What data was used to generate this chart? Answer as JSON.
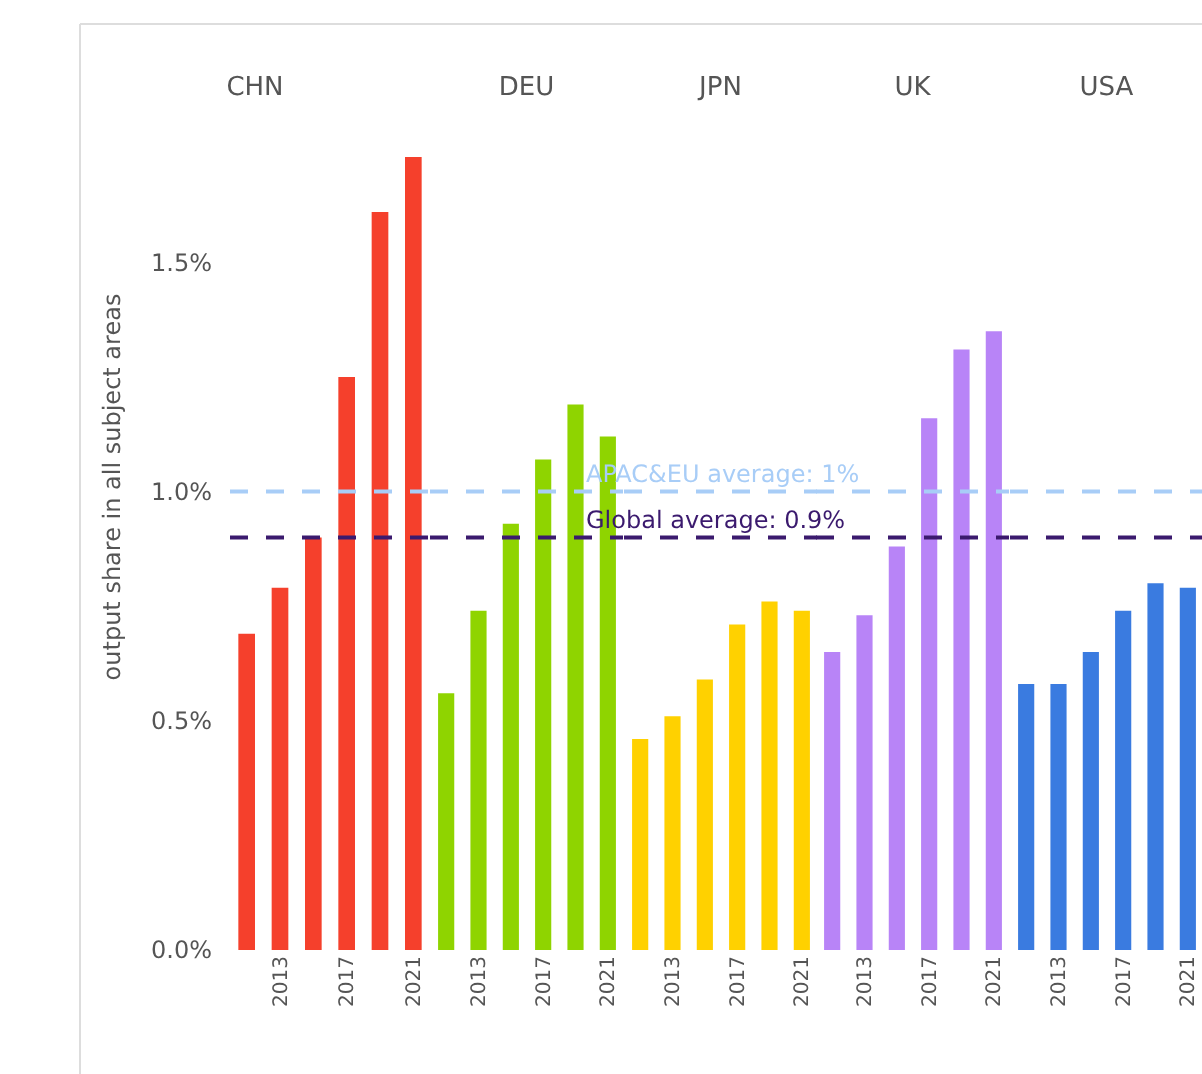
{
  "chart_data": [
    {
      "type": "bar",
      "title": "CHN",
      "ylabel": "output share in all subject areas",
      "categories": [
        null,
        "2013",
        null,
        "2017",
        null,
        "2021"
      ],
      "values": [
        0.69,
        0.79,
        0.9,
        1.25,
        1.61,
        1.73
      ],
      "color": "#f5402c",
      "ylim": [
        0,
        2.02
      ],
      "yticks": [
        {
          "value": 0,
          "label": "0.0%"
        },
        {
          "value": 0.5,
          "label": "0.5%"
        },
        {
          "value": 1,
          "label": "1.0%"
        },
        {
          "value": 1.5,
          "label": "1.5%"
        }
      ],
      "ref_lines": [
        {
          "axis": "y",
          "value": 1,
          "color": "#a8cdf7",
          "line_style": "dashed"
        },
        {
          "axis": "y",
          "value": 0.9,
          "color": "#3b1a6e",
          "line_style": "dashed"
        }
      ]
    },
    {
      "type": "bar",
      "title": "DEU",
      "categories": [
        null,
        "2013",
        null,
        "2017",
        null,
        "2021"
      ],
      "values": [
        0.56,
        0.74,
        0.93,
        1.07,
        1.19,
        1.12
      ],
      "color": "#8fd400",
      "ylim": [
        0,
        2.02
      ],
      "tick_labels": "x",
      "ref_lines": [
        {
          "axis": "y",
          "value": 1,
          "label": "APAC&EU average: 1%",
          "color": "#a8cdf7",
          "line_style": "dashed"
        },
        {
          "axis": "y",
          "value": 0.9,
          "label": "Global average: 0.9%",
          "color": "#3b1a6e",
          "line_style": "dashed"
        }
      ]
    },
    {
      "type": "bar",
      "title": "JPN",
      "categories": [
        null,
        "2013",
        null,
        "2017",
        null,
        "2021"
      ],
      "values": [
        0.46,
        0.51,
        0.59,
        0.71,
        0.76,
        0.74
      ],
      "color": "#ffd100",
      "ylim": [
        0,
        2.02
      ],
      "tick_labels": "x",
      "ref_lines": [
        {
          "axis": "y",
          "value": 1,
          "color": "#a8cdf7",
          "line_style": "dashed"
        },
        {
          "axis": "y",
          "value": 0.9,
          "color": "#3b1a6e",
          "line_style": "dashed"
        }
      ]
    },
    {
      "type": "bar",
      "title": "UK",
      "categories": [
        null,
        "2013",
        null,
        "2017",
        null,
        "2021"
      ],
      "values": [
        0.65,
        0.73,
        0.88,
        1.16,
        1.31,
        1.35
      ],
      "color": "#b884f7",
      "ylim": [
        0,
        2.02
      ],
      "tick_labels": "x",
      "ref_lines": [
        {
          "axis": "y",
          "value": 1,
          "color": "#a8cdf7",
          "line_style": "dashed"
        },
        {
          "axis": "y",
          "value": 0.9,
          "color": "#3b1a6e",
          "line_style": "dashed"
        }
      ]
    },
    {
      "type": "bar",
      "title": "USA",
      "categories": [
        null,
        "2013",
        null,
        "2017",
        null,
        "2021"
      ],
      "values": [
        0.58,
        0.58,
        0.65,
        0.74,
        0.8,
        0.79
      ],
      "color": "#3a7be0",
      "ylim": [
        0,
        2.02
      ],
      "tick_labels": "x",
      "ref_lines": [
        {
          "axis": "y",
          "value": 1,
          "color": "#a8cdf7",
          "line_style": "dashed"
        },
        {
          "axis": "y",
          "value": 0.9,
          "color": "#3b1a6e",
          "line_style": "dashed"
        }
      ]
    }
  ]
}
